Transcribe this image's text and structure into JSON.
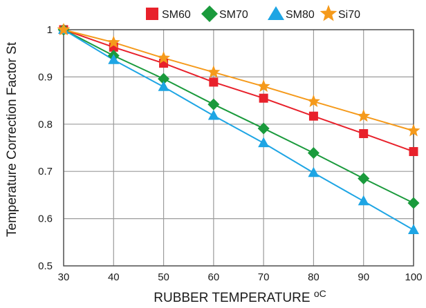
{
  "chart_data": {
    "type": "line",
    "xlabel": "RUBBER TEMPERATURE",
    "xlabel_unit": "oC",
    "ylabel": "Temperature Correction Factor St",
    "x": [
      30,
      40,
      50,
      60,
      70,
      80,
      90,
      100
    ],
    "xlim": [
      30,
      100
    ],
    "ylim": [
      0.5,
      1
    ],
    "x_ticks": [
      "30",
      "40",
      "50",
      "60",
      "70",
      "80",
      "90",
      "100"
    ],
    "y_ticks": [
      "0.5",
      "0.6",
      "0.7",
      "0.8",
      "0.9",
      "1"
    ],
    "y_tick_values": [
      0.5,
      0.6,
      0.7,
      0.8,
      0.9,
      1.0
    ],
    "grid": true,
    "legend_position": "top",
    "series": [
      {
        "name": "SM60",
        "color": "#e8212b",
        "marker": "square",
        "values": [
          1.0,
          0.963,
          0.929,
          0.889,
          0.855,
          0.817,
          0.78,
          0.742
        ]
      },
      {
        "name": "SM70",
        "color": "#1a9a3c",
        "marker": "diamond",
        "values": [
          1.0,
          0.945,
          0.896,
          0.842,
          0.791,
          0.739,
          0.685,
          0.633
        ]
      },
      {
        "name": "SM80",
        "color": "#1ea5e4",
        "marker": "triangle",
        "values": [
          1.0,
          0.936,
          0.879,
          0.818,
          0.76,
          0.697,
          0.637,
          0.576
        ]
      },
      {
        "name": "Si70",
        "color": "#f59a1b",
        "marker": "star",
        "values": [
          1.0,
          0.973,
          0.94,
          0.91,
          0.88,
          0.848,
          0.817,
          0.786
        ]
      }
    ]
  }
}
